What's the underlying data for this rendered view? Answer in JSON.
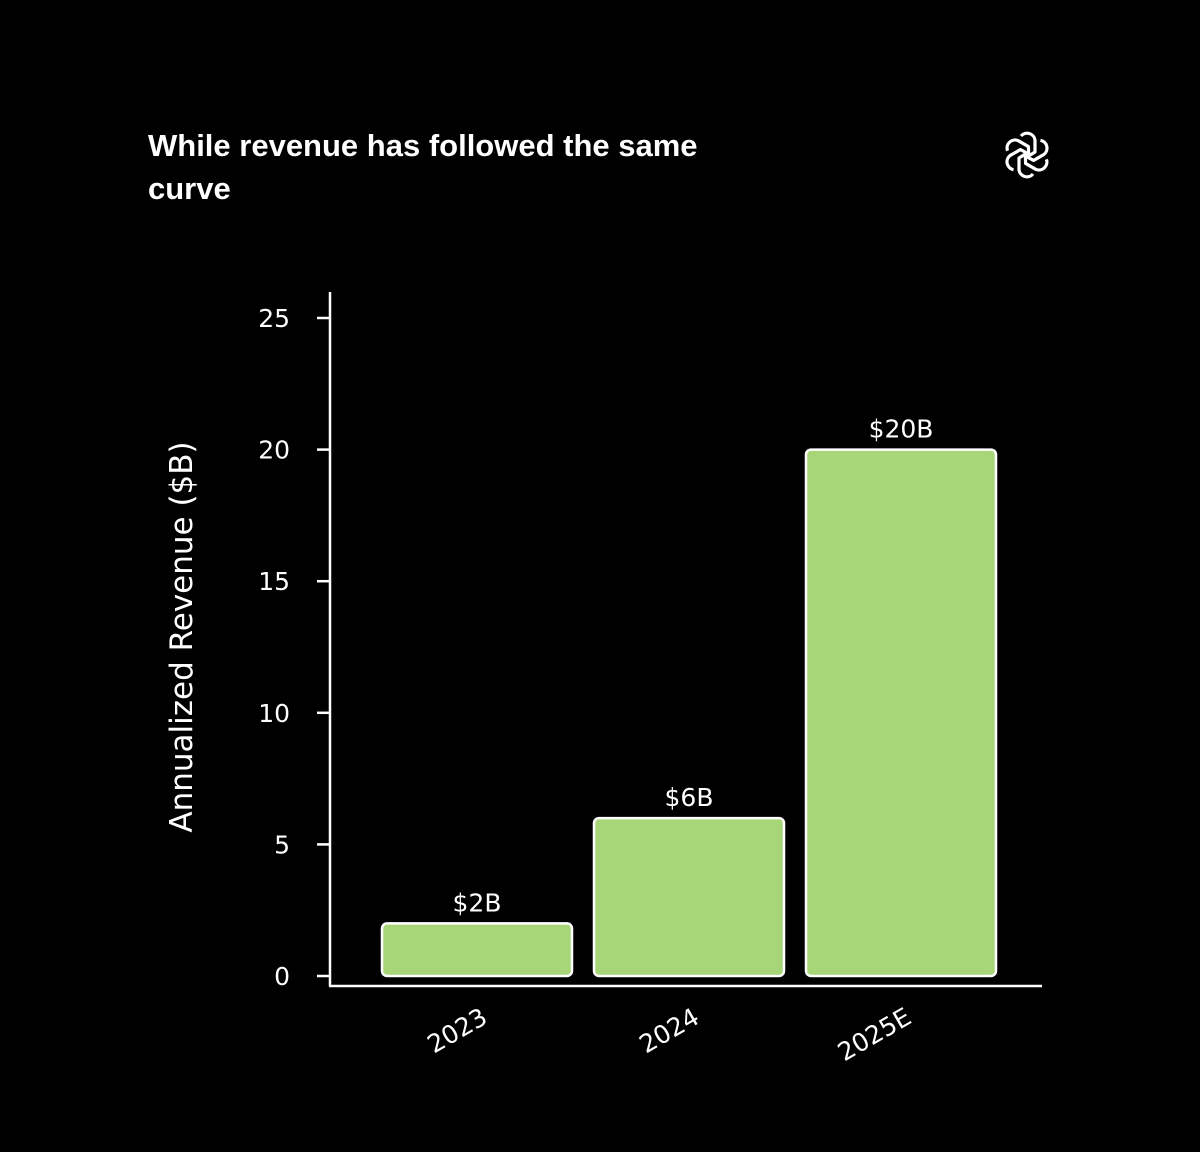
{
  "icons": {
    "logo": "openai-logo-icon"
  },
  "colors": {
    "background": "#000000",
    "bar_fill": "#a6d677",
    "bar_stroke": "#ffffff",
    "axis": "#ffffff",
    "text": "#ffffff"
  },
  "chart_data": {
    "type": "bar",
    "title": "While revenue has followed the same curve",
    "xlabel": "",
    "ylabel": "Annualized Revenue ($B)",
    "categories": [
      "2023",
      "2024",
      "2025E"
    ],
    "values": [
      2,
      6,
      20
    ],
    "data_labels": [
      "$2B",
      "$6B",
      "$20B"
    ],
    "ylim": [
      0,
      26
    ],
    "yticks": [
      0,
      5,
      10,
      15,
      20,
      25
    ],
    "grid": false,
    "legend": "none"
  }
}
